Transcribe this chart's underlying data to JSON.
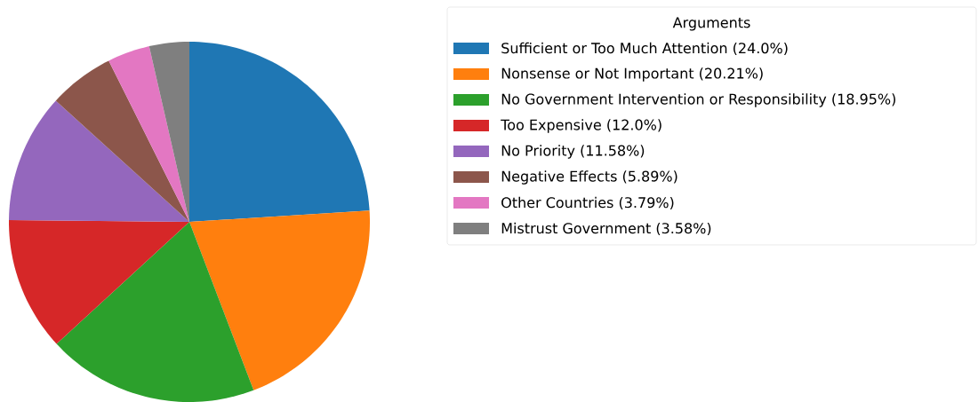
{
  "chart_data": {
    "type": "pie",
    "categories": [
      "Sufficient or Too Much Attention (24.0%)",
      "Nonsense or Not Important (20.21%)",
      "No Government Intervention or Responsibility (18.95%)",
      "Too Expensive (12.0%)",
      "No Priority (11.58%)",
      "Negative Effects (5.89%)",
      "Other Countries (3.79%)",
      "Mistrust Government (3.58%)"
    ],
    "values": [
      24.0,
      20.21,
      18.95,
      12.0,
      11.58,
      5.89,
      3.79,
      3.58
    ],
    "colors": [
      "#1f77b4",
      "#ff7f0e",
      "#2ca02c",
      "#d62728",
      "#9467bd",
      "#8c564b",
      "#e377c2",
      "#7f7f7f"
    ],
    "legend_title": "Arguments",
    "legend": "top right"
  }
}
